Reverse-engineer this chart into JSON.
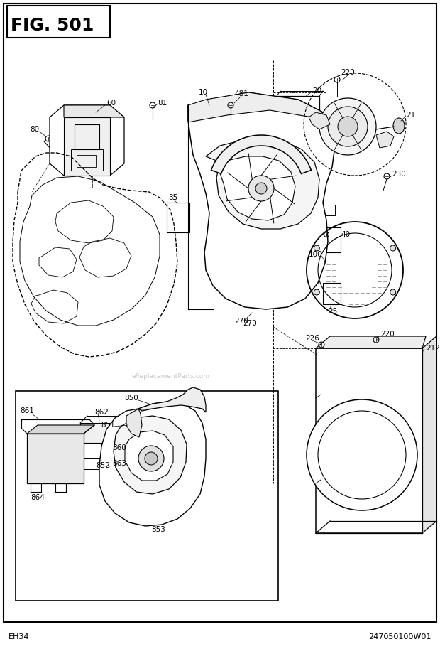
{
  "title": "FIG. 501",
  "footer_left": "EH34",
  "footer_right": "247050100W01",
  "bg_color": "#ffffff",
  "watermark": "eReplacementParts.com",
  "fig_w": 6.2,
  "fig_h": 9.13,
  "dpi": 100
}
